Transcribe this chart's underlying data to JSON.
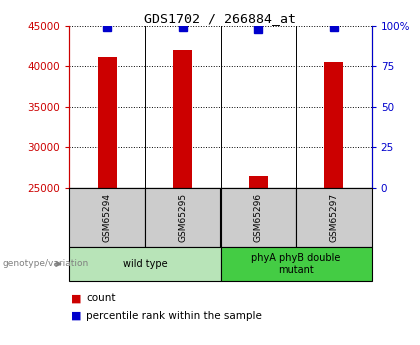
{
  "title": "GDS1702 / 266884_at",
  "samples": [
    "GSM65294",
    "GSM65295",
    "GSM65296",
    "GSM65297"
  ],
  "counts": [
    41200,
    42000,
    26500,
    40600
  ],
  "percentiles": [
    99,
    99,
    98,
    99
  ],
  "ylim_left": [
    25000,
    45000
  ],
  "ylim_right": [
    0,
    100
  ],
  "yticks_left": [
    25000,
    30000,
    35000,
    40000,
    45000
  ],
  "yticks_right": [
    0,
    25,
    50,
    75,
    100
  ],
  "ytick_labels_right": [
    "0",
    "25",
    "50",
    "75",
    "100%"
  ],
  "bar_color": "#cc0000",
  "dot_color": "#0000cc",
  "groups": [
    {
      "label": "wild type",
      "samples": [
        0,
        1
      ],
      "color": "#b8e4b8"
    },
    {
      "label": "phyA phyB double\nmutant",
      "samples": [
        2,
        3
      ],
      "color": "#44cc44"
    }
  ],
  "sample_cell_color": "#cccccc",
  "legend_count_color": "#cc0000",
  "legend_pct_color": "#0000cc",
  "genotype_label": "genotype/variation",
  "legend_count_label": "count",
  "legend_pct_label": "percentile rank within the sample",
  "bar_width": 0.25,
  "dot_size": 6
}
